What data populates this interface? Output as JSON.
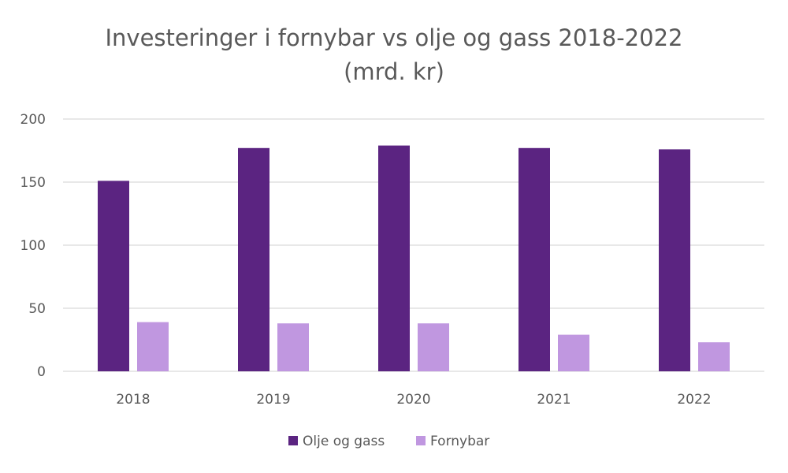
{
  "chart_data": {
    "type": "bar",
    "title_lines": [
      "Investeringer i fornybar vs olje og gass 2018-2022",
      "(mrd. kr)"
    ],
    "categories": [
      "2018",
      "2019",
      "2020",
      "2021",
      "2022"
    ],
    "series": [
      {
        "name": "Olje og gass",
        "color": "#5b2481",
        "values": [
          151,
          177,
          179,
          177,
          176
        ]
      },
      {
        "name": "Fornybar",
        "color": "#c097e0",
        "values": [
          39,
          38,
          38,
          29,
          23
        ]
      }
    ],
    "yticks": [
      "0",
      "50",
      "100",
      "150",
      "200"
    ],
    "ylim": [
      0,
      200
    ],
    "grid": true,
    "legend_position": "bottom",
    "xlabel": "",
    "ylabel": ""
  }
}
